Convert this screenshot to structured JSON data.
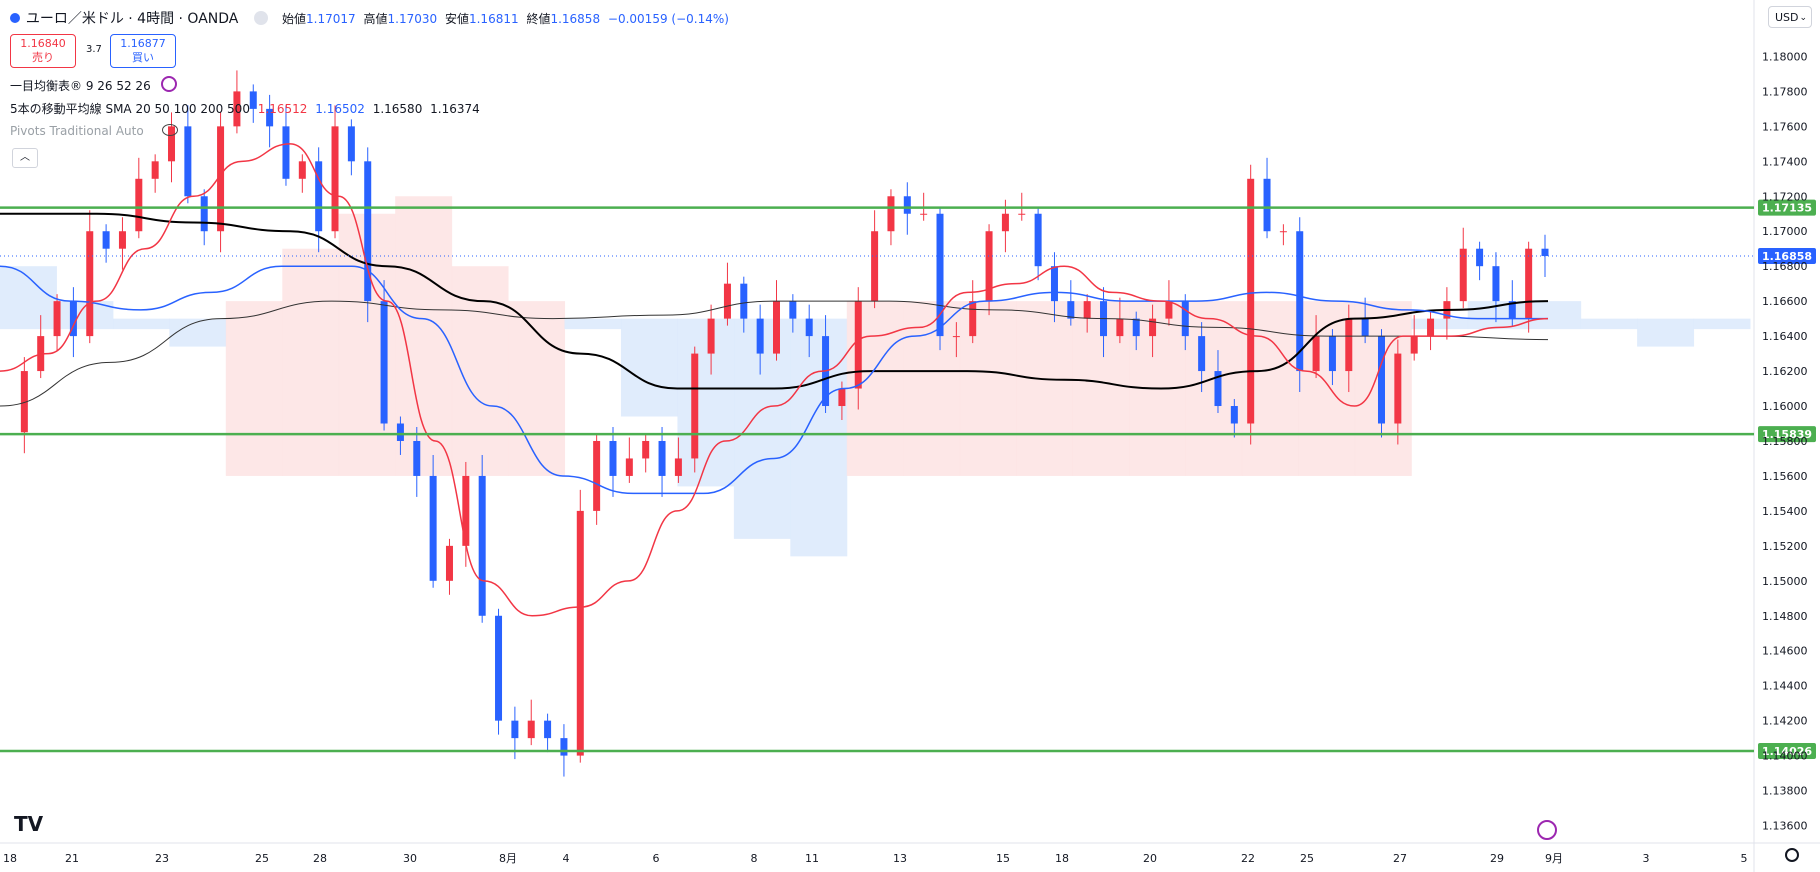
{
  "header": {
    "symbol": "ユーロ／米ドル · 4時間 · OANDA",
    "open_label": "始値",
    "open_value": "1.17017",
    "high_label": "高値",
    "high_value": "1.17030",
    "low_label": "安値",
    "low_value": "1.16811",
    "close_label": "終値",
    "close_value": "1.16858",
    "change": "−0.00159 (−0.14%)"
  },
  "trade": {
    "sell_price": "1.16840",
    "sell_label": "売り",
    "spread": "3.7",
    "buy_price": "1.16877",
    "buy_label": "買い"
  },
  "indicators": {
    "ichimoku": "一目均衡表® 9 26 52 26",
    "ma_label": "5本の移動平均線 SMA 20 50 100 200 500",
    "ma_values": [
      "1.16512",
      "1.16502",
      "1.16580",
      "1.16374"
    ],
    "pivots": "Pivots Traditional Auto"
  },
  "currency": "USD",
  "colors": {
    "up": "#2962ff",
    "down": "#f23645",
    "sr": "#4caf50",
    "ma_red": "#f23645",
    "ma_blue": "#2962ff",
    "ma_black": "#000000",
    "cloud_red": "#fde3e3",
    "cloud_blue": "#dbe9fb"
  },
  "chart_data": {
    "type": "candlestick",
    "y_axis": {
      "ylim": [
        1.135,
        1.183
      ],
      "ticks": [
        "1.18000",
        "1.17800",
        "1.17600",
        "1.17400",
        "1.17200",
        "1.17000",
        "1.16800",
        "1.16600",
        "1.16400",
        "1.16200",
        "1.16000",
        "1.15800",
        "1.15600",
        "1.15400",
        "1.15200",
        "1.15000",
        "1.14800",
        "1.14600",
        "1.14400",
        "1.14200",
        "1.14000",
        "1.13800",
        "1.13600"
      ]
    },
    "x_axis": {
      "labels": [
        "18",
        "21",
        "23",
        "25",
        "28",
        "30",
        "8月",
        "4",
        "6",
        "8",
        "11",
        "13",
        "15",
        "18",
        "20",
        "22",
        "25",
        "27",
        "29",
        "9月",
        "3",
        "5"
      ]
    },
    "horizontal_lines": [
      {
        "value": 1.17135,
        "label": "1.17135",
        "color": "#4caf50"
      },
      {
        "value": 1.15839,
        "label": "1.15839",
        "color": "#4caf50"
      },
      {
        "value": 1.14026,
        "label": "1.14026",
        "color": "#4caf50"
      }
    ],
    "last_price": {
      "value": 1.16858,
      "label": "1.16858"
    },
    "price_path": [
      1.1585,
      1.162,
      1.164,
      1.166,
      1.164,
      1.17,
      1.169,
      1.17,
      1.173,
      1.174,
      1.176,
      1.172,
      1.17,
      1.176,
      1.178,
      1.177,
      1.176,
      1.173,
      1.174,
      1.17,
      1.176,
      1.174,
      1.166,
      1.159,
      1.158,
      1.156,
      1.15,
      1.152,
      1.156,
      1.148,
      1.142,
      1.141,
      1.142,
      1.141,
      1.14,
      1.154,
      1.158,
      1.156,
      1.157,
      1.158,
      1.156,
      1.157,
      1.163,
      1.165,
      1.167,
      1.165,
      1.163,
      1.166,
      1.165,
      1.164,
      1.16,
      1.161,
      1.166,
      1.17,
      1.172,
      1.171,
      1.171,
      1.164,
      1.164,
      1.166,
      1.17,
      1.171,
      1.171,
      1.168,
      1.166,
      1.165,
      1.166,
      1.164,
      1.165,
      1.164,
      1.165,
      1.166,
      1.164,
      1.162,
      1.16,
      1.159,
      1.173,
      1.17,
      1.17,
      1.162,
      1.164,
      1.162,
      1.165,
      1.164,
      1.159,
      1.163,
      1.164,
      1.165,
      1.166,
      1.169,
      1.168,
      1.166,
      1.165,
      1.169,
      1.16858
    ],
    "sma_red": [
      1.162,
      1.163,
      1.166,
      1.169,
      1.172,
      1.174,
      1.175,
      1.172,
      1.166,
      1.158,
      1.15,
      1.148,
      1.1485,
      1.15,
      1.154,
      1.158,
      1.16,
      1.162,
      1.164,
      1.1645,
      1.1665,
      1.167,
      1.168,
      1.1665,
      1.166,
      1.165,
      1.164,
      1.162,
      1.16,
      1.164,
      1.164,
      1.1645,
      1.165
    ],
    "sma_blue": [
      1.168,
      1.166,
      1.1655,
      1.1665,
      1.168,
      1.168,
      1.165,
      1.16,
      1.156,
      1.155,
      1.155,
      1.157,
      1.161,
      1.164,
      1.166,
      1.1665,
      1.166,
      1.166,
      1.1665,
      1.166,
      1.1655,
      1.165,
      1.165
    ],
    "sma_black": [
      1.171,
      1.171,
      1.1705,
      1.17,
      1.168,
      1.166,
      1.163,
      1.161,
      1.161,
      1.162,
      1.162,
      1.1615,
      1.161,
      1.162,
      1.165,
      1.1655,
      1.166
    ],
    "sma_gray": [
      1.16,
      1.1625,
      1.165,
      1.166,
      1.1655,
      1.165,
      1.1652,
      1.166,
      1.166,
      1.1655,
      1.165,
      1.1645,
      1.164,
      1.164,
      1.1638
    ],
    "cloud": [
      1.168,
      1.166,
      1.165,
      1.164,
      1.166,
      1.169,
      1.171,
      1.172,
      1.168,
      1.166,
      1.165,
      1.16,
      1.156,
      1.153,
      1.152,
      1.156,
      1.16,
      1.162,
      1.164,
      1.165,
      1.162,
      1.159,
      1.157,
      1.158,
      1.162,
      1.165,
      1.166,
      1.166,
      1.165,
      1.164,
      1.165,
      1.166
    ]
  }
}
